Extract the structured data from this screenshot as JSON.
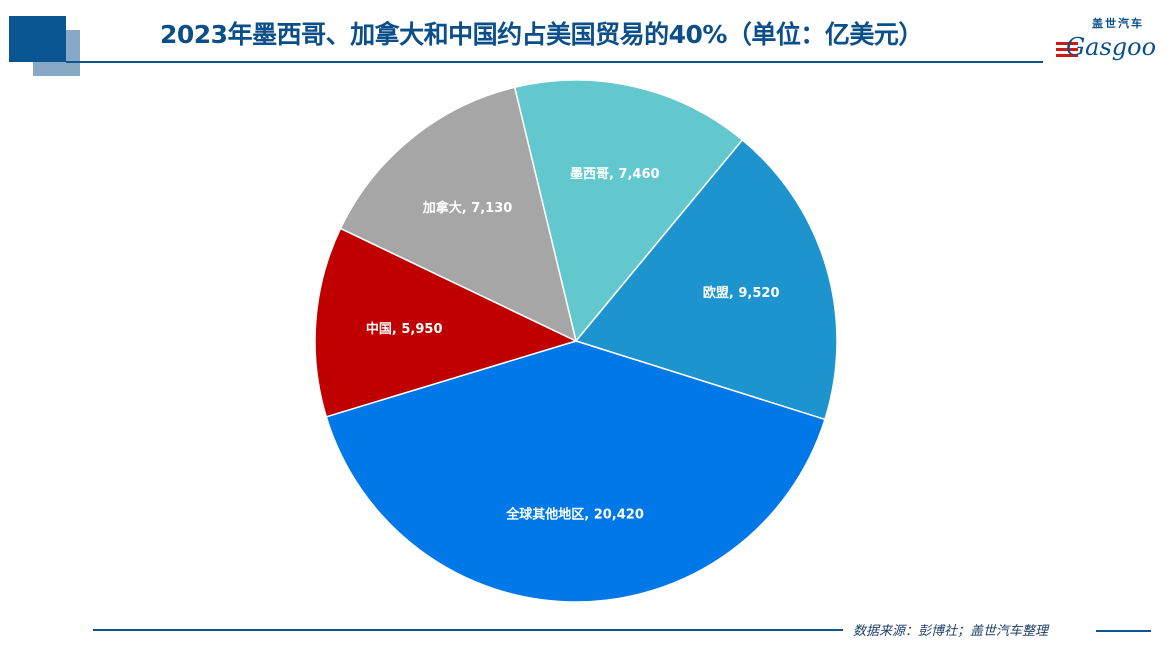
{
  "header": {
    "title": "2023年墨西哥、加拿大和中国约占美国贸易的40%（单位：亿美元）"
  },
  "logo": {
    "chinese": "盖世汽车",
    "english": "Gasgoo"
  },
  "footer": {
    "source": "数据来源：彭博社；盖世汽车整理"
  },
  "chart_data": {
    "type": "pie",
    "title": "2023年墨西哥、加拿大和中国约占美国贸易的40%（单位：亿美元）",
    "unit": "亿美元",
    "slices": [
      {
        "label": "墨西哥",
        "value": 7460,
        "color": "#62c8cd",
        "display": "墨西哥, 7,460"
      },
      {
        "label": "欧盟",
        "value": 9520,
        "color": "#1e94cf",
        "display": "欧盟, 9,520"
      },
      {
        "label": "全球其他地区",
        "value": 20420,
        "color": "#0078e8",
        "display": "全球其他地区, 20,420"
      },
      {
        "label": "中国",
        "value": 5950,
        "color": "#c00000",
        "display": "中国, 5,950"
      },
      {
        "label": "加拿大",
        "value": 7130,
        "color": "#a6a6a6",
        "display": "加拿大, 7,130"
      }
    ],
    "legend": "none"
  }
}
